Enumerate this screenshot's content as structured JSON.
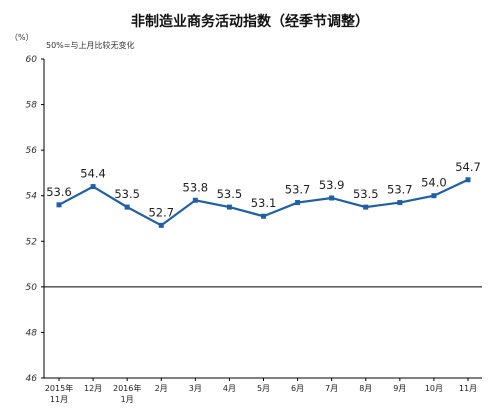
{
  "chart_data": {
    "type": "line",
    "title": "非制造业商务活动指数（经季节调整）",
    "unit_label": "（%）",
    "note": "50%=与上月比较无变化",
    "ylim": [
      46,
      60
    ],
    "yticks": [
      "46",
      "48",
      "50",
      "52",
      "54",
      "56",
      "58",
      "60"
    ],
    "reference_line": 50,
    "categories": [
      [
        "2015年",
        "11月"
      ],
      [
        "12月"
      ],
      [
        "2016年",
        "1月"
      ],
      [
        "2月"
      ],
      [
        "3月"
      ],
      [
        "4月"
      ],
      [
        "5月"
      ],
      [
        "6月"
      ],
      [
        "7月"
      ],
      [
        "8月"
      ],
      [
        "9月"
      ],
      [
        "10月"
      ],
      [
        "11月"
      ]
    ],
    "values": [
      53.6,
      54.4,
      53.5,
      52.7,
      53.8,
      53.5,
      53.1,
      53.7,
      53.9,
      53.5,
      53.7,
      54.0,
      54.7
    ],
    "labels": [
      "53.6",
      "54.4",
      "53.5",
      "52.7",
      "53.8",
      "53.5",
      "53.1",
      "53.7",
      "53.9",
      "53.5",
      "53.7",
      "54.0",
      "54.7"
    ],
    "grid": false,
    "line_color": "#1f5fa6",
    "axis_color": "#000000"
  }
}
